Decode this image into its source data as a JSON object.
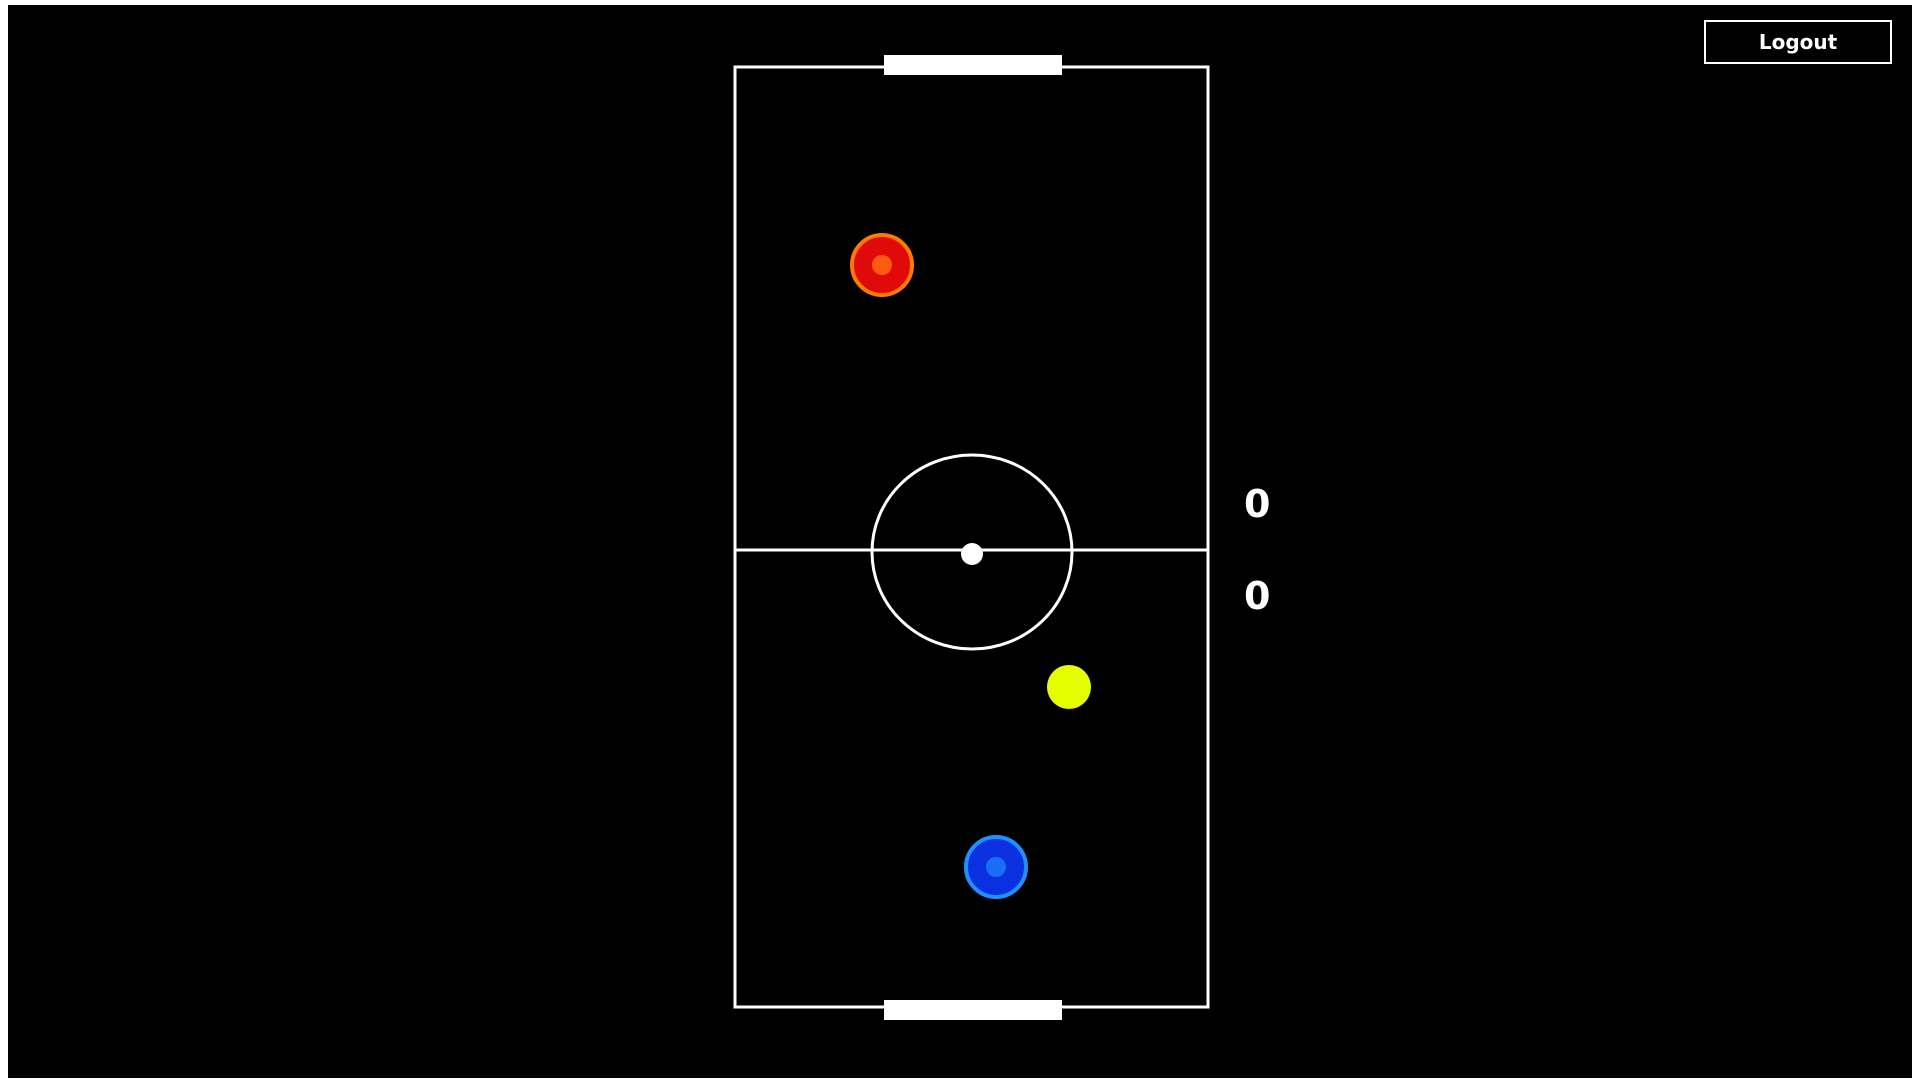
{
  "header": {
    "logout_label": "Logout"
  },
  "scoreboard": {
    "top_score": "0",
    "bottom_score": "0"
  },
  "pieces": {
    "opponent_paddle": {
      "fill": "#e10a0a",
      "ring": "#ff7a00",
      "center": "#ff5a10"
    },
    "player_paddle": {
      "fill": "#0a30e0",
      "ring": "#1e90ff",
      "center": "#1a6ef5"
    },
    "puck": {
      "fill": "#e6ff00"
    }
  },
  "colors": {
    "background": "#000000",
    "rink_lines": "#ffffff",
    "frame": "#ffffff"
  }
}
